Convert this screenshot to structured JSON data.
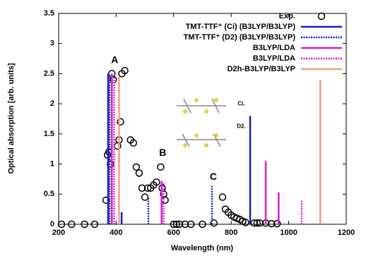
{
  "chart_data": {
    "type": "spectrum",
    "xlabel": "Wavelength (nm)",
    "ylabel": "Optical absorption [arb. units]",
    "xlim": [
      200,
      1200
    ],
    "xticks": [
      200,
      400,
      600,
      800,
      1000,
      1200
    ],
    "ylim": [
      0,
      3.5
    ],
    "yticks": [
      0,
      0.5,
      1,
      1.5,
      2,
      2.5,
      3,
      3.5
    ],
    "legend": "upper right",
    "series": [
      {
        "name": "Exp.",
        "kind": "points",
        "color": "#000000",
        "x": [
          210,
          245,
          290,
          325,
          365,
          370,
          375,
          380,
          385,
          390,
          405,
          410,
          415,
          420,
          430,
          450,
          460,
          470,
          480,
          490,
          500,
          510,
          520,
          530,
          540,
          555,
          560,
          565,
          570,
          600,
          610,
          620,
          640,
          660,
          700,
          740,
          770,
          780,
          790,
          800,
          810,
          820,
          830,
          840,
          850,
          880,
          890,
          900,
          920,
          940,
          960
        ],
        "values": [
          0,
          0,
          0,
          0,
          0.4,
          1.15,
          1.2,
          1.0,
          2.5,
          2.4,
          1.3,
          1.4,
          1.7,
          2.5,
          2.55,
          1.4,
          1.35,
          0.95,
          0.85,
          0.6,
          0.45,
          0.6,
          0.6,
          0.65,
          0.7,
          0.95,
          0.6,
          0.5,
          0.4,
          0,
          0,
          0,
          0,
          0,
          0,
          0.02,
          0.45,
          0.25,
          0.2,
          0.15,
          0.12,
          0.1,
          0.08,
          0.05,
          0.03,
          0.02,
          0.02,
          0.02,
          0.02,
          0.01,
          0.01
        ]
      },
      {
        "name": "TMT-TTF⁺ (Ci) (B3LYP/B3LYP)",
        "kind": "sticks",
        "dash": "solid",
        "color": "#1020c0",
        "x": [
          372,
          419,
          866
        ],
        "values": [
          2.5,
          0.2,
          1.8
        ]
      },
      {
        "name": "TMT-TTF⁺ (D2) (B3LYP/B3LYP)",
        "kind": "sticks",
        "dash": "dotted",
        "color": "#1020c0",
        "x": [
          377,
          512,
          733
        ],
        "values": [
          2.5,
          0.45,
          0.64
        ]
      },
      {
        "name": "B3LYP/LDA",
        "kind": "sticks",
        "dash": "solid",
        "color": "#d020d0",
        "x": [
          385,
          558,
          920,
          965
        ],
        "values": [
          2.5,
          0.72,
          1.05,
          0.53
        ]
      },
      {
        "name": "B3LYP/LDA",
        "kind": "sticks",
        "dash": "dotted",
        "color": "#d020d0",
        "x": [
          393,
          565,
          1045
        ],
        "values": [
          2.45,
          0.7,
          0.4
        ]
      },
      {
        "name": "D2h-B3LYP/B3LYP",
        "kind": "sticks",
        "dash": "solid",
        "color": "#f0a080",
        "x": [
          410,
          1110
        ],
        "values": [
          2.45,
          2.4
        ]
      }
    ],
    "annotations": [
      {
        "text": "A",
        "x": 395,
        "y": 2.72
      },
      {
        "text": "B",
        "x": 562,
        "y": 1.18
      },
      {
        "text": "C",
        "x": 738,
        "y": 0.78
      },
      {
        "text": "Ci.",
        "x": 835,
        "y": 2.0
      },
      {
        "text": "D2.",
        "x": 835,
        "y": 1.62
      }
    ]
  }
}
